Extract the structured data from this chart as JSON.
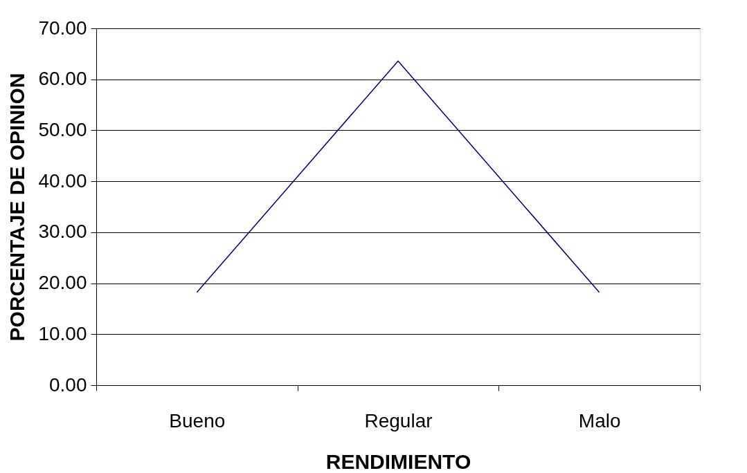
{
  "chart_data": {
    "type": "line",
    "xlabel": "RENDIMIENTO",
    "ylabel": "PORCENTAJE DE OPINION",
    "categories": [
      "Bueno",
      "Regular",
      "Malo"
    ],
    "series": [
      {
        "color": "#000080",
        "values": [
          18.2,
          63.6,
          18.2
        ]
      }
    ],
    "ylim": [
      0,
      70
    ],
    "yticks": [
      {
        "value": 0,
        "label": "0.00"
      },
      {
        "value": 10,
        "label": "10.00"
      },
      {
        "value": 20,
        "label": "20.00"
      },
      {
        "value": 30,
        "label": "30.00"
      },
      {
        "value": 40,
        "label": "40.00"
      },
      {
        "value": 50,
        "label": "50.00"
      },
      {
        "value": 60,
        "label": "60.00"
      },
      {
        "value": 70,
        "label": "70.00"
      }
    ],
    "grid": "y",
    "marker": "none",
    "line_style": "solid"
  }
}
